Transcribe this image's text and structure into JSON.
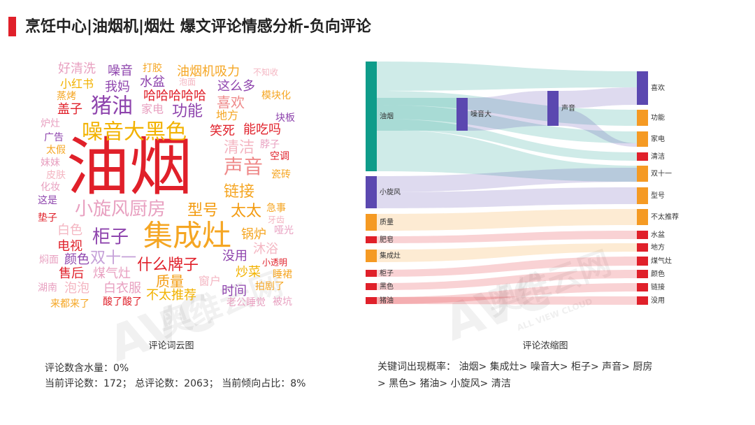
{
  "header": {
    "title": "烹饪中心|油烟机|烟灶 爆文评论情感分析-负向评论"
  },
  "watermark": {
    "logo": "AVC",
    "brand": "奥维云网",
    "sub": "ALL VIEW CLOUD"
  },
  "wordcloud": {
    "caption": "评论词云图",
    "words": [
      {
        "text": "油烟",
        "color": "#e0202a"
      },
      {
        "text": "噪音大黑色",
        "color": "#f2b200"
      },
      {
        "text": "猪油",
        "color": "#8e44ad"
      },
      {
        "text": "集成灶",
        "color": "#f5a623"
      },
      {
        "text": "小旋风厨房",
        "color": "#e8a0c0"
      },
      {
        "text": "型号",
        "color": "#f39c12"
      },
      {
        "text": "声音",
        "color": "#ef8a8a"
      },
      {
        "text": "柜子",
        "color": "#8e44ad"
      },
      {
        "text": "什么牌子",
        "color": "#e0202a"
      },
      {
        "text": "双十一",
        "color": "#c5a0d8"
      },
      {
        "text": "功能",
        "color": "#8e44ad"
      },
      {
        "text": "清洁",
        "color": "#f4b6c2"
      },
      {
        "text": "链接",
        "color": "#f5a623"
      },
      {
        "text": "太太",
        "color": "#f39c12"
      },
      {
        "text": "锅炉",
        "color": "#f5a623"
      },
      {
        "text": "沐浴",
        "color": "#f4b6c2"
      },
      {
        "text": "炒菜",
        "color": "#f2b200"
      },
      {
        "text": "没用",
        "color": "#8e44ad"
      },
      {
        "text": "质量",
        "color": "#f39c12"
      },
      {
        "text": "不太推荐",
        "color": "#f2b200"
      },
      {
        "text": "时间",
        "color": "#8e44ad"
      },
      {
        "text": "窗户",
        "color": "#f4b6c2"
      },
      {
        "text": "白衣服",
        "color": "#e8a0c0"
      },
      {
        "text": "泡泡",
        "color": "#f4b6c2"
      },
      {
        "text": "煤气灶",
        "color": "#e8a0c0"
      },
      {
        "text": "售后",
        "color": "#e0202a"
      },
      {
        "text": "颜色",
        "color": "#8e44ad"
      },
      {
        "text": "电视",
        "color": "#e0202a"
      },
      {
        "text": "白色",
        "color": "#f4b6c2"
      },
      {
        "text": "垫子",
        "color": "#e0202a"
      },
      {
        "text": "这是",
        "color": "#8e44ad"
      },
      {
        "text": "化妆",
        "color": "#e8a0c0"
      },
      {
        "text": "皮肤",
        "color": "#f4b6c2"
      },
      {
        "text": "妹妹",
        "color": "#e8a0c0"
      },
      {
        "text": "太假",
        "color": "#f5a623"
      },
      {
        "text": "广告",
        "color": "#8e44ad"
      },
      {
        "text": "炉灶",
        "color": "#e8a0c0"
      },
      {
        "text": "盖子",
        "color": "#e0202a"
      },
      {
        "text": "蒸烤",
        "color": "#f5a623"
      },
      {
        "text": "小红书",
        "color": "#f2b200"
      },
      {
        "text": "好清洗",
        "color": "#e8a0c0"
      },
      {
        "text": "噪音",
        "color": "#8e44ad"
      },
      {
        "text": "我妈",
        "color": "#8e44ad"
      },
      {
        "text": "打胶",
        "color": "#f5a623"
      },
      {
        "text": "水盆",
        "color": "#8e44ad"
      },
      {
        "text": "家电",
        "color": "#e8a0c0"
      },
      {
        "text": "哈哈哈哈哈",
        "color": "#e0202a"
      },
      {
        "text": "油烟机吸力",
        "color": "#f5a623"
      },
      {
        "text": "泡面",
        "color": "#f4b6c2"
      },
      {
        "text": "这么多",
        "color": "#8e44ad"
      },
      {
        "text": "不知收",
        "color": "#f4b6c2"
      },
      {
        "text": "模块化",
        "color": "#f5a623"
      },
      {
        "text": "喜欢",
        "color": "#ef8a8a"
      },
      {
        "text": "地方",
        "color": "#f5a623"
      },
      {
        "text": "块板",
        "color": "#8e44ad"
      },
      {
        "text": "笑死",
        "color": "#e0202a"
      },
      {
        "text": "能吃吗",
        "color": "#e0202a"
      },
      {
        "text": "脖子",
        "color": "#e8a0c0"
      },
      {
        "text": "空调",
        "color": "#e0202a"
      },
      {
        "text": "瓷砖",
        "color": "#f5a623"
      },
      {
        "text": "急事",
        "color": "#f5a623"
      },
      {
        "text": "牙齿",
        "color": "#f4b6c2"
      },
      {
        "text": "哑光",
        "color": "#e8a0c0"
      },
      {
        "text": "小透明",
        "color": "#e0202a"
      },
      {
        "text": "睡裙",
        "color": "#f5a623"
      },
      {
        "text": "拍剧了",
        "color": "#f5a623"
      },
      {
        "text": "被坑",
        "color": "#e8a0c0"
      },
      {
        "text": "老公睡觉",
        "color": "#e8a0c0"
      },
      {
        "text": "酸了酸了",
        "color": "#e0202a"
      },
      {
        "text": "来都来了",
        "color": "#f5a623"
      },
      {
        "text": "湖南",
        "color": "#e8a0c0"
      },
      {
        "text": "焖面",
        "color": "#e8a0c0"
      }
    ]
  },
  "stats": {
    "line1": "评论数含水量：0%",
    "line2": "当前评论数：172； 总评论数：2063； 当前倾向占比：8%"
  },
  "sankey": {
    "caption": "评论浓缩图",
    "nodes": [
      "油烟",
      "小旋风",
      "质量",
      "肥皂",
      "集成灶",
      "柜子",
      "黑色",
      "猪油",
      "噪音大",
      "声音",
      "喜欢",
      "功能",
      "家电",
      "清洁",
      "双十一",
      "型号",
      "不太推荐",
      "水盆",
      "地方",
      "煤气灶",
      "颜色",
      "链接",
      "没用"
    ]
  },
  "keywords": {
    "line1": "关键词出现概率：  油烟> 集成灶> 噪音大> 柜子> 声音> 厨房",
    "line2": "> 黑色> 猪油> 小旋风> 清洁"
  }
}
